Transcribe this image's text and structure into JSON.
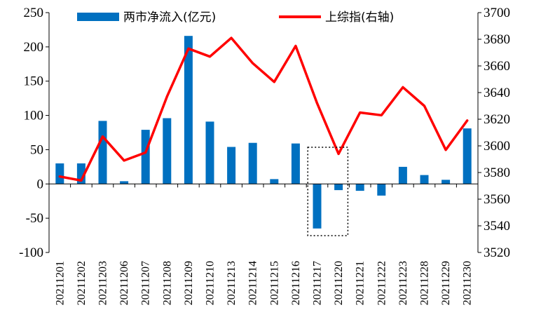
{
  "chart_data": {
    "type": "bar+line",
    "categories": [
      "20211201",
      "20211202",
      "20211203",
      "20211206",
      "20211207",
      "20211208",
      "20211209",
      "20211210",
      "20211213",
      "20211214",
      "20211215",
      "20211216",
      "20211217",
      "20211220",
      "20211221",
      "20211222",
      "20211223",
      "20211228",
      "20211229",
      "20211230"
    ],
    "series": [
      {
        "name": "两市净流入(亿元)",
        "type": "bar",
        "axis": "left",
        "color": "#0070C0",
        "values": [
          30,
          30,
          92,
          4,
          79,
          96,
          216,
          91,
          54,
          60,
          7,
          59,
          -65,
          -9,
          -10,
          -17,
          25,
          13,
          6,
          81
        ]
      },
      {
        "name": "上综指(右轴)",
        "type": "line",
        "axis": "right",
        "color": "#FF0000",
        "values": [
          3577,
          3574,
          3607,
          3589,
          3595,
          3637,
          3673,
          3667,
          3681,
          3662,
          3648,
          3675,
          3632,
          3594,
          3625,
          3623,
          3644,
          3630,
          3597,
          3619
        ]
      }
    ],
    "y_left": {
      "range": [
        -100,
        250
      ],
      "ticks": [
        -100,
        -50,
        0,
        50,
        100,
        150,
        200,
        250
      ],
      "tick_labels": [
        "-100",
        "-50",
        "0",
        "50",
        "100",
        "150",
        "200",
        "250"
      ]
    },
    "y_right": {
      "range": [
        3520,
        3700
      ],
      "ticks": [
        3520,
        3540,
        3560,
        3580,
        3600,
        3620,
        3640,
        3660,
        3680,
        3700
      ],
      "tick_labels": [
        "3520",
        "3540",
        "3560",
        "3580",
        "3600",
        "3620",
        "3640",
        "3660",
        "3680",
        "3700"
      ]
    },
    "legend": {
      "position": "top",
      "items": [
        "两市净流入(亿元)",
        "上综指(右轴)"
      ]
    },
    "highlight": {
      "style": "dotted-box",
      "categories": [
        "20211217",
        "20211220"
      ]
    },
    "grid": false
  }
}
